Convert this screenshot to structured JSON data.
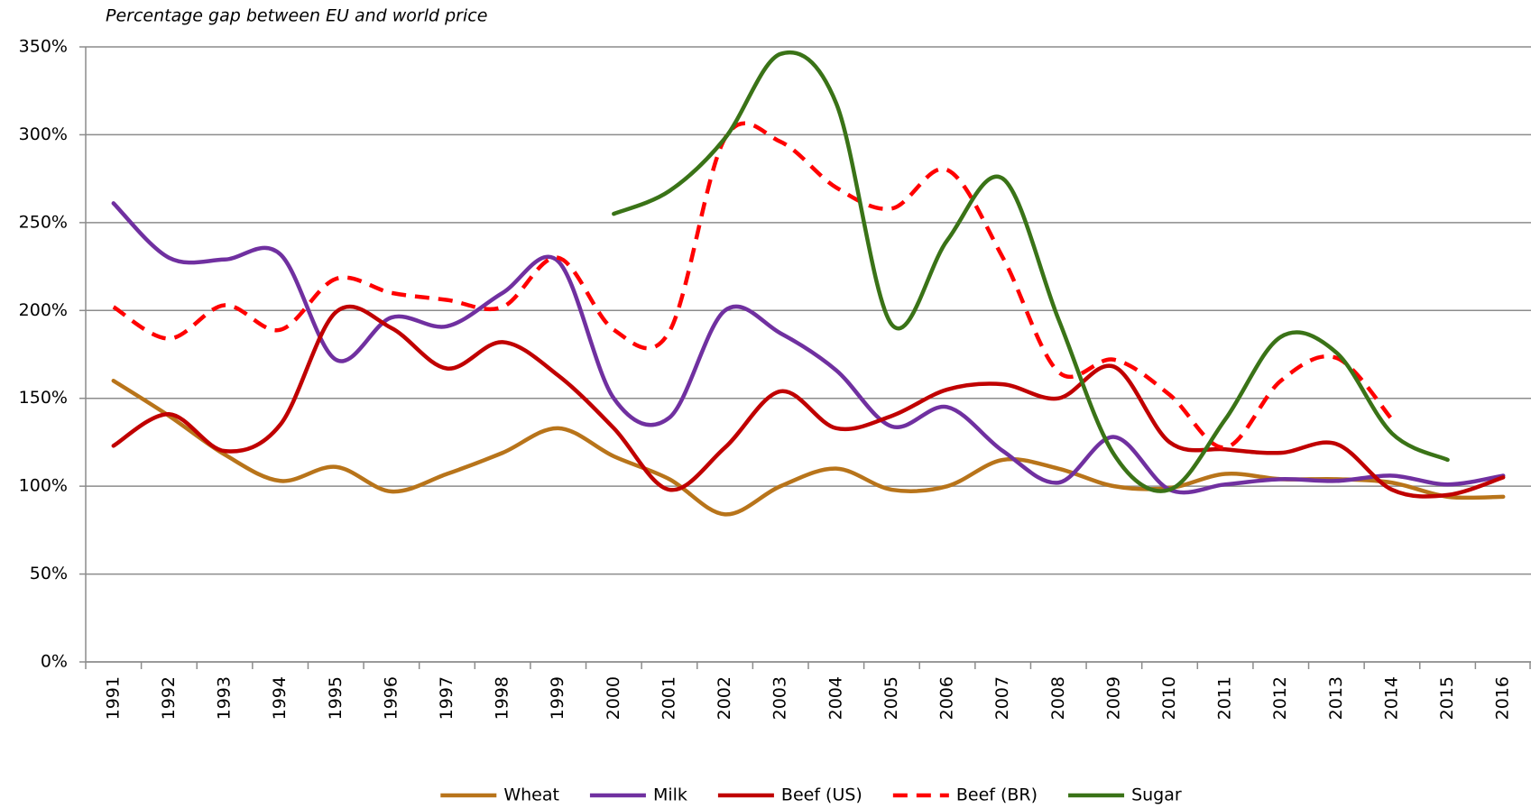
{
  "chart_data": {
    "type": "line",
    "subtitle": "Percentage gap between EU and world price",
    "categories": [
      "1991",
      "1992",
      "1993",
      "1994",
      "1995",
      "1996",
      "1997",
      "1998",
      "1999",
      "2000",
      "2001",
      "2002",
      "2003",
      "2004",
      "2005",
      "2006",
      "2007",
      "2008",
      "2009",
      "2010",
      "2011",
      "2012",
      "2013",
      "2014",
      "2015",
      "2016"
    ],
    "series": [
      {
        "name": "Wheat",
        "color": "#b8741a",
        "dashed": false,
        "values": [
          160,
          140,
          118,
          103,
          111,
          97,
          107,
          119,
          133,
          117,
          104,
          84,
          100,
          110,
          98,
          100,
          115,
          110,
          100,
          99,
          107,
          104,
          104,
          102,
          94,
          94
        ]
      },
      {
        "name": "Milk",
        "color": "#7030a0",
        "dashed": false,
        "values": [
          261,
          230,
          229,
          232,
          172,
          196,
          191,
          210,
          228,
          150,
          139,
          200,
          187,
          166,
          134,
          145,
          120,
          102,
          128,
          98,
          101,
          104,
          103,
          106,
          101,
          106
        ]
      },
      {
        "name": "Beef (US)",
        "color": "#c00000",
        "dashed": false,
        "values": [
          123,
          141,
          120,
          135,
          199,
          190,
          167,
          182,
          163,
          133,
          98,
          122,
          154,
          133,
          140,
          155,
          158,
          150,
          168,
          125,
          121,
          119,
          124,
          98,
          95,
          105
        ]
      },
      {
        "name": "Beef (BR)",
        "color": "#ff0000",
        "dashed": true,
        "values": [
          202,
          184,
          203,
          189,
          218,
          210,
          206,
          202,
          230,
          189,
          188,
          298,
          296,
          270,
          258,
          280,
          230,
          165,
          172,
          152,
          122,
          160,
          173,
          138,
          null,
          null
        ]
      },
      {
        "name": "Sugar",
        "color": "#3a7317",
        "dashed": false,
        "values": [
          null,
          null,
          null,
          null,
          null,
          null,
          null,
          null,
          null,
          255,
          268,
          298,
          346,
          318,
          192,
          240,
          275,
          195,
          118,
          98,
          138,
          185,
          176,
          130,
          115,
          null
        ]
      }
    ],
    "ylim": [
      0,
      350
    ],
    "yticks": [
      {
        "value": 0,
        "label": "0%"
      },
      {
        "value": 50,
        "label": "50%"
      },
      {
        "value": 100,
        "label": "100%"
      },
      {
        "value": 150,
        "label": "150%"
      },
      {
        "value": 200,
        "label": "200%"
      },
      {
        "value": 250,
        "label": "250%"
      },
      {
        "value": 300,
        "label": "300%"
      },
      {
        "value": 350,
        "label": "350%"
      }
    ],
    "grid": true,
    "legend": "bottom"
  }
}
